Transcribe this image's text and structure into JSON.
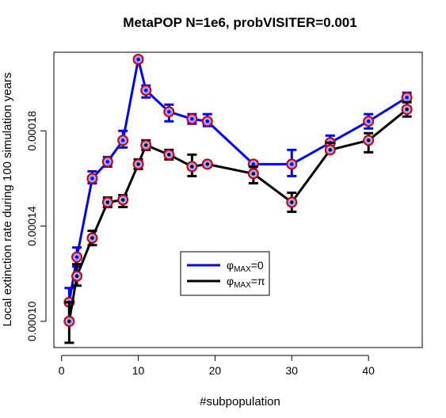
{
  "chart_data": {
    "type": "line",
    "title": "MetaPOP N=1e6, probVISITER=0.001",
    "xlabel": "#subpopulation",
    "ylabel": "Local extinction rate during 100 simulation years",
    "xlim": [
      -1,
      47
    ],
    "ylim": [
      8.9e-05,
      0.000213
    ],
    "xticks": [
      0,
      10,
      20,
      30,
      40
    ],
    "xtick_labels": [
      "0",
      "10",
      "20",
      "30",
      "40"
    ],
    "yticks": [
      0.0001,
      0.00014,
      0.00018
    ],
    "ytick_labels": [
      "0.00010",
      "0.00014",
      "0.00018"
    ],
    "x": [
      1,
      2,
      4,
      6,
      8,
      10,
      11,
      14,
      17,
      19,
      25,
      30,
      35,
      40,
      45
    ],
    "legend": {
      "position": "center-bottom",
      "entries": [
        {
          "series": 0,
          "label": "φ",
          "sub": "MAX",
          "suffix": "=0"
        },
        {
          "series": 1,
          "label": "φ",
          "sub": "MAX",
          "suffix": "=π"
        }
      ]
    },
    "series": [
      {
        "color": "#0000ff",
        "values": [
          0.000108,
          0.000127,
          0.00016,
          0.000167,
          0.000176,
          0.00021,
          0.000197,
          0.000188,
          0.000185,
          0.000184,
          0.000166,
          0.000166,
          0.000175,
          0.000184,
          0.000194
        ],
        "err_low": [
          0.000101,
          0.000123,
          0.000158,
          0.000165,
          0.000173,
          0.000209,
          0.000194,
          0.000184,
          0.000183,
          0.000182,
          0.000165,
          0.000161,
          0.000173,
          0.000181,
          0.00019
        ],
        "err_high": [
          0.000114,
          0.000131,
          0.000163,
          0.000169,
          0.00018,
          0.000211,
          0.000199,
          0.000191,
          0.000187,
          0.000187,
          0.000167,
          0.000172,
          0.000178,
          0.000187,
          0.000196
        ]
      },
      {
        "color": "#000000",
        "values": [
          0.0001,
          0.000119,
          0.000135,
          0.00015,
          0.000151,
          0.000166,
          0.000174,
          0.00017,
          0.000165,
          0.000166,
          0.000162,
          0.00015,
          0.000172,
          0.000176,
          0.000189
        ],
        "err_low": [
          9.1e-05,
          0.000115,
          0.000132,
          0.000148,
          0.000148,
          0.000164,
          0.000172,
          0.000168,
          0.000161,
          0.000165,
          0.000158,
          0.000146,
          0.000171,
          0.000171,
          0.000186
        ],
        "err_high": [
          0.000108,
          0.000124,
          0.000138,
          0.000152,
          0.000153,
          0.000168,
          0.000176,
          0.000172,
          0.00017,
          0.000167,
          0.000165,
          0.000154,
          0.000175,
          0.000179,
          0.000192
        ]
      }
    ],
    "marker": {
      "fill": "#a0a0ff",
      "ring": "#cc0000"
    },
    "grid": false
  }
}
